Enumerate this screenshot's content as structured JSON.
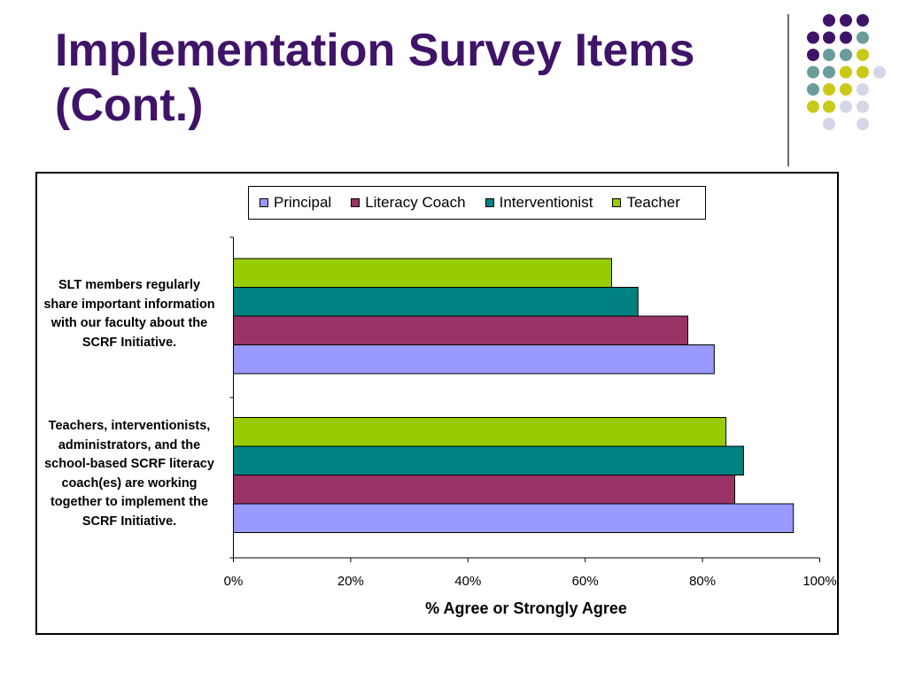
{
  "slide": {
    "title_line1": "Implementation Survey Items",
    "title_line2": "(Cont.)"
  },
  "colors": {
    "title": "#3f1468",
    "dot_purple": "#3f1468",
    "dot_teal": "#6a9c9c",
    "dot_yellow": "#c9c91a",
    "dot_lavender": "#d6d6e8"
  },
  "chart_data": {
    "type": "bar",
    "orientation": "horizontal",
    "categories": [
      "SLT members regularly share important information with our faculty about the SCRF Initiative.",
      "Teachers, interventionists, administrators, and the school-based SCRF literacy coach(es) are working together to implement the SCRF Initiative."
    ],
    "category_label_lines": [
      [
        "SLT members regularly",
        "share important information",
        "with our faculty about the",
        "SCRF Initiative."
      ],
      [
        "Teachers, interventionists,",
        "administrators, and the",
        "school-based SCRF literacy",
        "coach(es) are working",
        "together to implement the",
        "SCRF Initiative."
      ]
    ],
    "series": [
      {
        "name": "Principal",
        "color": "#9999ff",
        "values": [
          82,
          95.5
        ]
      },
      {
        "name": "Literacy Coach",
        "color": "#993366",
        "values": [
          77.5,
          85.5
        ]
      },
      {
        "name": "Interventionist",
        "color": "#008080",
        "values": [
          69,
          87
        ]
      },
      {
        "name": "Teacher",
        "color": "#99cc00",
        "values": [
          64.5,
          84
        ]
      }
    ],
    "xlabel": "% Agree or Strongly Agree",
    "xlim": [
      0,
      100
    ],
    "xticks": [
      "0%",
      "20%",
      "40%",
      "60%",
      "80%",
      "100%"
    ],
    "legend_position": "top",
    "grid": false
  }
}
